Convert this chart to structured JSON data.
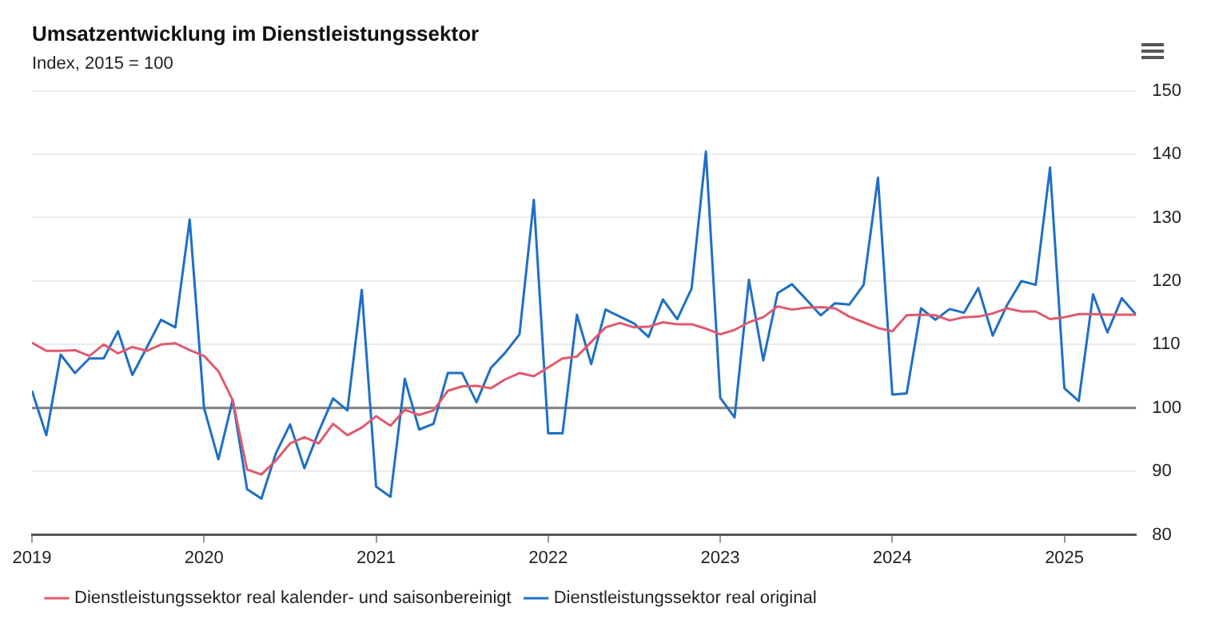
{
  "chart_data": {
    "type": "line",
    "title": "Umsatzentwicklung im Dienstleistungssektor",
    "subtitle": "Index, 2015 = 100",
    "x": [
      "2019-01",
      "2019-02",
      "2019-03",
      "2019-04",
      "2019-05",
      "2019-06",
      "2019-07",
      "2019-08",
      "2019-09",
      "2019-10",
      "2019-11",
      "2019-12",
      "2020-01",
      "2020-02",
      "2020-03",
      "2020-04",
      "2020-05",
      "2020-06",
      "2020-07",
      "2020-08",
      "2020-09",
      "2020-10",
      "2020-11",
      "2020-12",
      "2021-01",
      "2021-02",
      "2021-03",
      "2021-04",
      "2021-05",
      "2021-06",
      "2021-07",
      "2021-08",
      "2021-09",
      "2021-10",
      "2021-11",
      "2021-12",
      "2022-01",
      "2022-02",
      "2022-03",
      "2022-04",
      "2022-05",
      "2022-06",
      "2022-07",
      "2022-08",
      "2022-09",
      "2022-10",
      "2022-11",
      "2022-12",
      "2023-01",
      "2023-02",
      "2023-03",
      "2023-04",
      "2023-05",
      "2023-06",
      "2023-07",
      "2023-08",
      "2023-09",
      "2023-10",
      "2023-11",
      "2023-12",
      "2024-01",
      "2024-02",
      "2024-03",
      "2024-04",
      "2024-05",
      "2024-06",
      "2024-07",
      "2024-08",
      "2024-09",
      "2024-10",
      "2024-11",
      "2024-12",
      "2025-01",
      "2025-02",
      "2025-03",
      "2025-04",
      "2025-05",
      "2025-06"
    ],
    "series": [
      {
        "name": "Dienstleistungssektor real kalender- und saisonbereinigt",
        "color": "#e05a6e",
        "values": [
          110.3,
          109.0,
          109.0,
          109.1,
          108.2,
          110.0,
          108.6,
          109.6,
          109.0,
          110.0,
          110.2,
          109.1,
          108.2,
          105.8,
          101.2,
          90.3,
          89.5,
          91.7,
          94.4,
          95.4,
          94.4,
          97.5,
          95.7,
          96.9,
          98.7,
          97.2,
          99.7,
          98.9,
          99.6,
          102.7,
          103.4,
          103.5,
          103.1,
          104.5,
          105.5,
          105.0,
          106.4,
          107.8,
          108.1,
          110.4,
          112.7,
          113.4,
          112.7,
          112.8,
          113.5,
          113.2,
          113.2,
          112.5,
          111.6,
          112.3,
          113.5,
          114.3,
          116.0,
          115.5,
          115.8,
          115.9,
          115.7,
          114.4,
          113.5,
          112.6,
          112.1,
          114.6,
          114.7,
          114.6,
          113.8,
          114.3,
          114.4,
          114.9,
          115.7,
          115.2,
          115.2,
          114.0,
          114.3,
          114.8,
          114.8,
          114.7,
          114.7,
          114.7
        ]
      },
      {
        "name": "Dienstleistungssektor real original",
        "color": "#1f6fc5",
        "values": [
          102.7,
          95.7,
          108.4,
          105.5,
          107.8,
          107.8,
          112.1,
          105.2,
          109.5,
          113.9,
          112.7,
          129.7,
          100.0,
          91.9,
          101.3,
          87.2,
          85.7,
          92.8,
          97.4,
          90.5,
          96.3,
          101.5,
          99.6,
          118.6,
          87.6,
          86.0,
          104.6,
          96.6,
          97.5,
          105.5,
          105.5,
          100.9,
          106.3,
          108.7,
          111.6,
          132.8,
          96.0,
          96.0,
          114.7,
          106.9,
          115.5,
          114.4,
          113.3,
          111.2,
          117.1,
          114.0,
          118.8,
          140.4,
          101.6,
          98.5,
          120.2,
          107.5,
          118.1,
          119.5,
          117.1,
          114.6,
          116.5,
          116.3,
          119.4,
          136.3,
          102.1,
          102.3,
          115.7,
          113.9,
          115.6,
          115.0,
          118.9,
          111.4,
          116.2,
          120.0,
          119.4,
          137.9,
          103.1,
          101.1,
          117.9,
          111.9,
          117.3,
          114.7
        ]
      }
    ],
    "xlim": [
      "2019-01",
      "2025-06"
    ],
    "xticks": [
      "2019",
      "2020",
      "2021",
      "2022",
      "2023",
      "2024",
      "2025"
    ],
    "ylim": [
      80,
      150
    ],
    "yticks": [
      80,
      90,
      100,
      110,
      120,
      130,
      140,
      150
    ],
    "ref_lines": [
      {
        "axis": "y",
        "value": 100,
        "color": "#808080"
      }
    ],
    "grid": "y",
    "legend": "bottom left",
    "marker": "none",
    "line_style": "solid"
  }
}
